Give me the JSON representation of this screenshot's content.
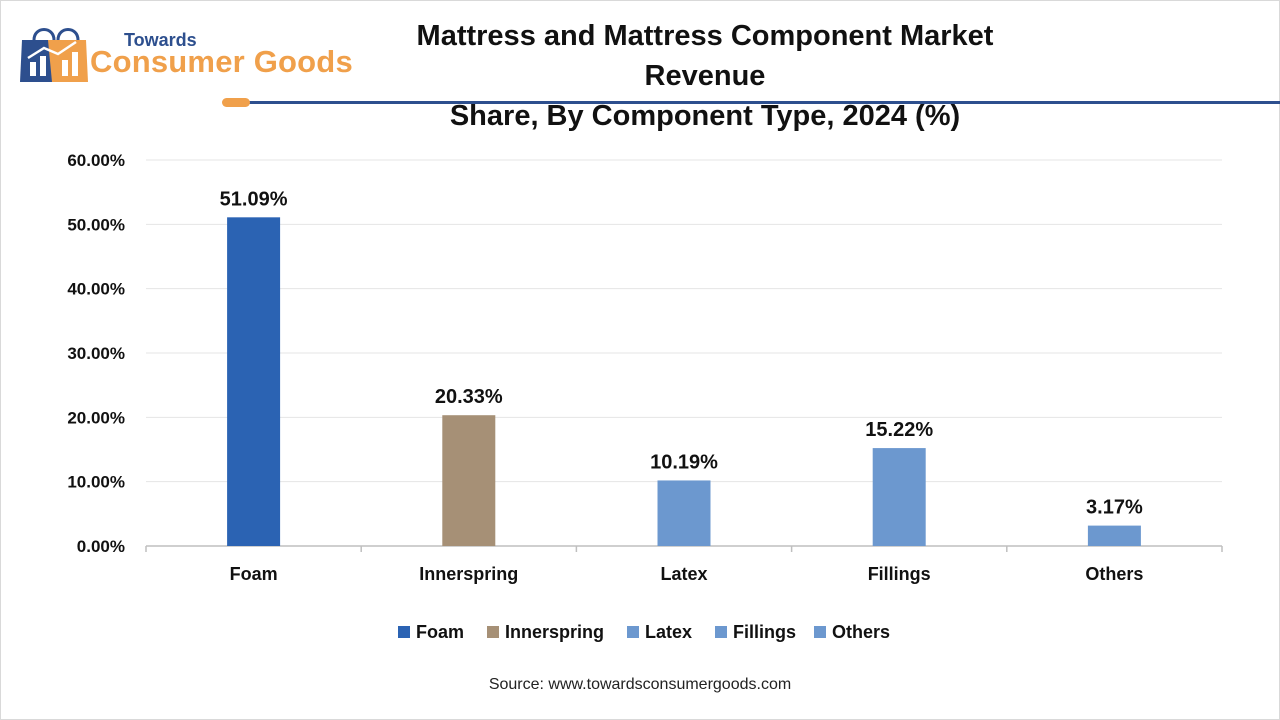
{
  "logo": {
    "small_text": "Towards",
    "big_text": "Consumer Goods",
    "colors": {
      "navy": "#2d4f8e",
      "orange": "#f0a04b"
    }
  },
  "source_text": "Source: www.towardsconsumergoods.com",
  "chart_data": {
    "type": "bar",
    "title": "Mattress and Mattress Component Market Revenue Share, By Component Type, 2024 (%)",
    "title_lines": [
      "Mattress and Mattress Component Market Revenue",
      "Share, By Component Type, 2024 (%)"
    ],
    "categories": [
      "Foam",
      "Innerspring",
      "Latex",
      "Fillings",
      "Others"
    ],
    "values": [
      51.09,
      20.33,
      10.19,
      15.22,
      3.17
    ],
    "value_labels": [
      "51.09%",
      "20.33%",
      "10.19%",
      "15.22%",
      "3.17%"
    ],
    "colors": [
      "#2b63b3",
      "#a69076",
      "#6c98cf",
      "#6c98cf",
      "#6c98cf"
    ],
    "xlabel": "",
    "ylabel": "",
    "ylim": [
      0,
      60
    ],
    "yticks": [
      "0.00%",
      "10.00%",
      "20.00%",
      "30.00%",
      "40.00%",
      "50.00%",
      "60.00%"
    ],
    "grid": true,
    "legend": {
      "position": "bottom",
      "entries": [
        "Foam",
        "Innerspring",
        "Latex",
        "Fillings",
        "Others"
      ]
    }
  }
}
